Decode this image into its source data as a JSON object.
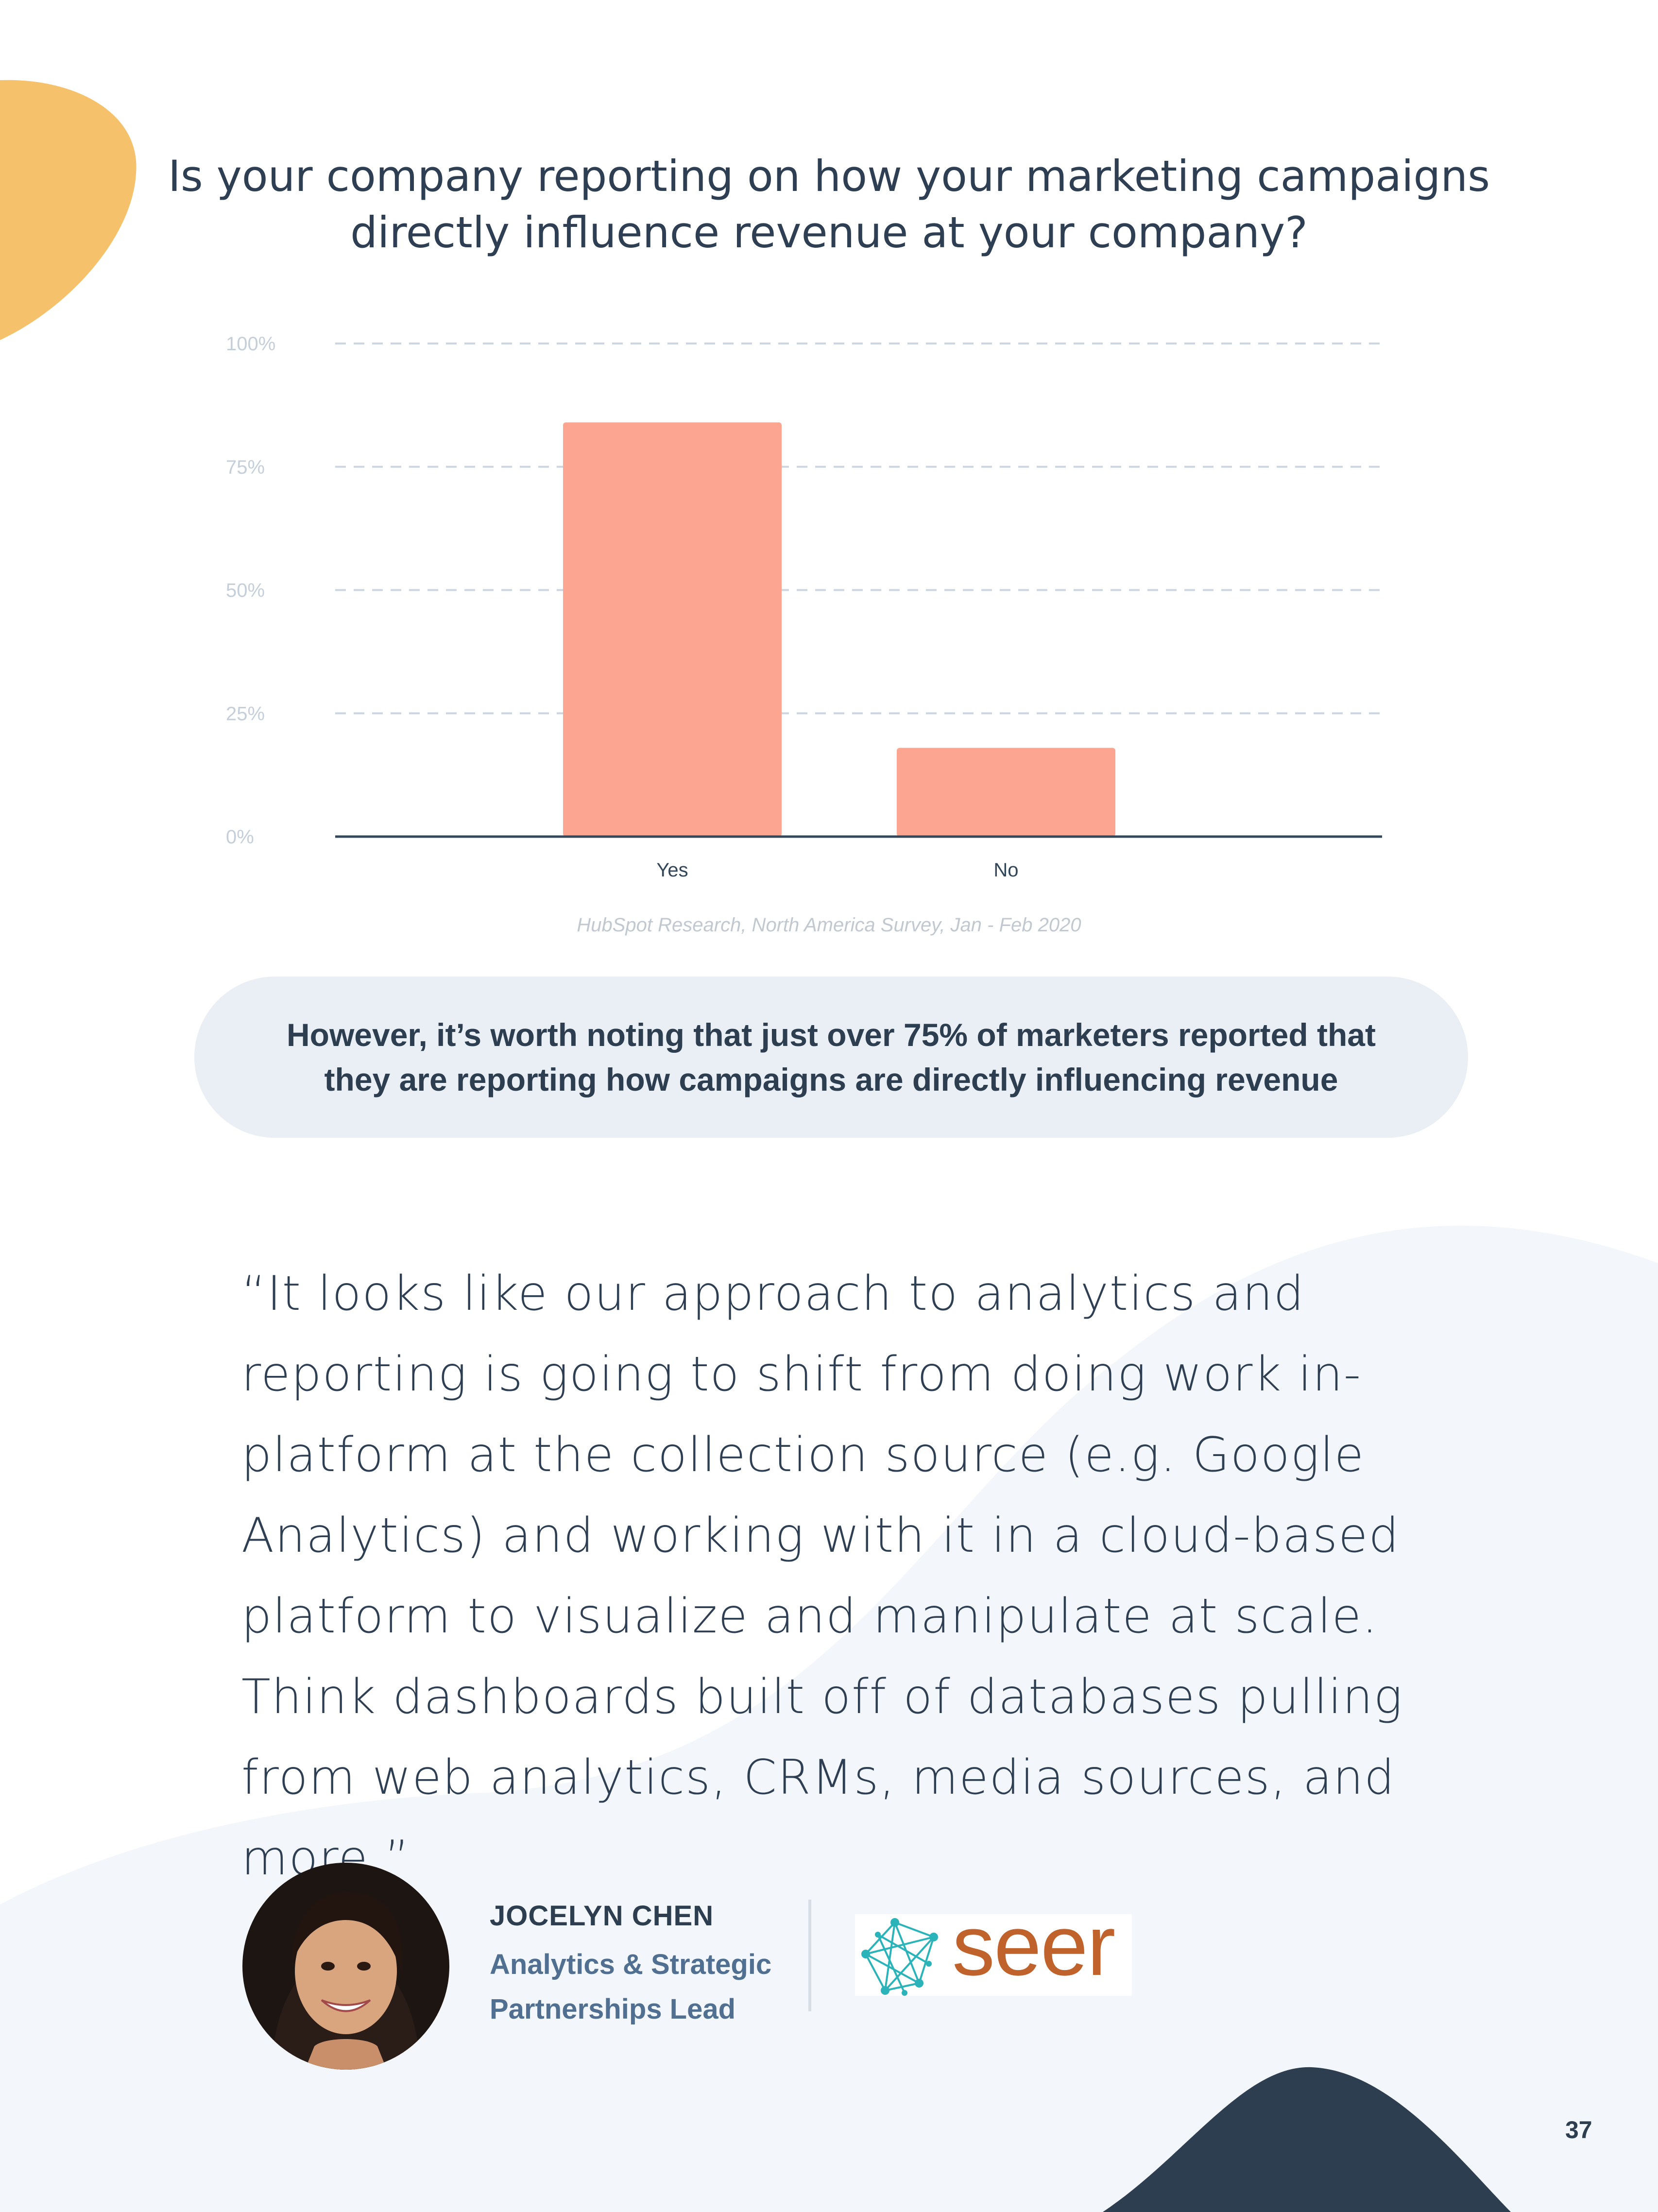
{
  "header": {
    "question": "Is your company reporting on how your marketing campaigns directly influence revenue at your company?"
  },
  "chart_data": {
    "type": "bar",
    "categories": [
      "Yes",
      "No"
    ],
    "values": [
      84,
      18
    ],
    "ylim": [
      0,
      100
    ],
    "yticks": [
      "0%",
      "25%",
      "50%",
      "75%",
      "100%"
    ],
    "ytick_values": [
      0,
      25,
      50,
      75,
      100
    ],
    "grid": true,
    "bar_color": "#fca590",
    "axis_color": "#33475b"
  },
  "source_note": "HubSpot Research, North America Survey, Jan - Feb 2020",
  "callout": {
    "text": "However, it’s worth noting that just over 75% of marketers reported that they are reporting how campaigns are directly influencing revenue"
  },
  "quote": {
    "text": "“It looks like our approach to analytics and reporting is going to shift from doing work in-platform at the collection source (e.g. Google Analytics) and working with it in a cloud-based platform to visualize and manipulate at scale. Think dashboards built off of databases pulling from web analytics, CRMs, media sources, and more.”"
  },
  "person": {
    "name": "JOCELYN CHEN",
    "title": "Analytics & Strategic Partnerships Lead"
  },
  "logo": {
    "wordmark": "seer",
    "color": "#c0622c",
    "icon_color": "#2ab3b8"
  },
  "page": {
    "number": "37"
  },
  "colors": {
    "accent_yellow": "#f5c26b",
    "background_panel": "#f3f6fa",
    "dark_navy": "#2d3e50"
  }
}
